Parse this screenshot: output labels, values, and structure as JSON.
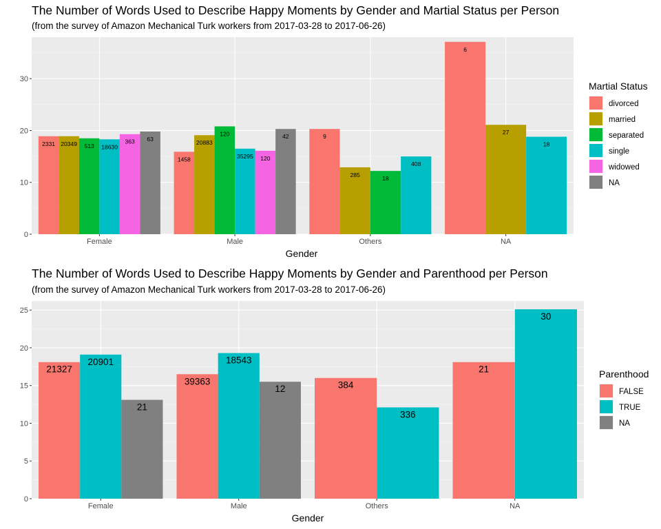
{
  "chart_data": [
    {
      "type": "bar",
      "title": "The Number of Words Used to Describe Happy Moments by Gender and Martial Status per Person",
      "subtitle": "(from the survey of Amazon Mechanical Turk workers from 2017-03-28 to 2017-06-26)",
      "xlabel": "Gender",
      "ylabel": "",
      "categories": [
        "Female",
        "Male",
        "Others",
        "NA"
      ],
      "ylim": [
        0,
        38
      ],
      "yticks": [
        0,
        10,
        20,
        30
      ],
      "grid": true,
      "legend": {
        "title": "Martial Status",
        "position": "right"
      },
      "series": [
        {
          "name": "divorced",
          "color": "#F8766D",
          "values": [
            18.9,
            15.9,
            20.3,
            37.1
          ],
          "labels": [
            "2331",
            "1458",
            "9",
            "6"
          ]
        },
        {
          "name": "married",
          "color": "#B79F00",
          "values": [
            18.9,
            19.1,
            12.9,
            21.1
          ],
          "labels": [
            "20349",
            "20883",
            "285",
            "27"
          ]
        },
        {
          "name": "separated",
          "color": "#00BA38",
          "values": [
            18.5,
            20.8,
            12.2,
            null
          ],
          "labels": [
            "513",
            "120",
            "18",
            ""
          ]
        },
        {
          "name": "single",
          "color": "#00BFC4",
          "values": [
            18.3,
            16.5,
            15.0,
            18.8
          ],
          "labels": [
            "18630",
            "35295",
            "408",
            "18"
          ]
        },
        {
          "name": "widowed",
          "color": "#F564E3",
          "values": [
            19.3,
            16.1,
            null,
            null
          ],
          "labels": [
            "363",
            "120",
            "",
            ""
          ]
        },
        {
          "name": "NA",
          "color": "#808080",
          "values": [
            19.8,
            20.3,
            null,
            null
          ],
          "labels": [
            "63",
            "42",
            "",
            ""
          ]
        }
      ]
    },
    {
      "type": "bar",
      "title": "The Number of Words Used to Describe Happy Moments by Gender and Parenthood per Person",
      "subtitle": "(from the survey of Amazon Mechanical Turk workers from 2017-03-28 to 2017-06-26)",
      "xlabel": "Gender",
      "ylabel": "",
      "categories": [
        "Female",
        "Male",
        "Others",
        "NA"
      ],
      "ylim": [
        0,
        26.2
      ],
      "yticks": [
        0,
        5,
        10,
        15,
        20,
        25
      ],
      "grid": true,
      "legend": {
        "title": "Parenthood",
        "position": "right"
      },
      "series": [
        {
          "name": "FALSE",
          "color": "#F8766D",
          "values": [
            18.1,
            16.5,
            16.0,
            18.1
          ],
          "labels": [
            "21327",
            "39363",
            "384",
            "21"
          ]
        },
        {
          "name": "TRUE",
          "color": "#00BFC4",
          "values": [
            19.1,
            19.3,
            12.1,
            25.1
          ],
          "labels": [
            "20901",
            "18543",
            "336",
            "30"
          ]
        },
        {
          "name": "NA",
          "color": "#808080",
          "values": [
            13.1,
            15.5,
            null,
            null
          ],
          "labels": [
            "21",
            "12",
            "",
            ""
          ]
        }
      ]
    }
  ]
}
